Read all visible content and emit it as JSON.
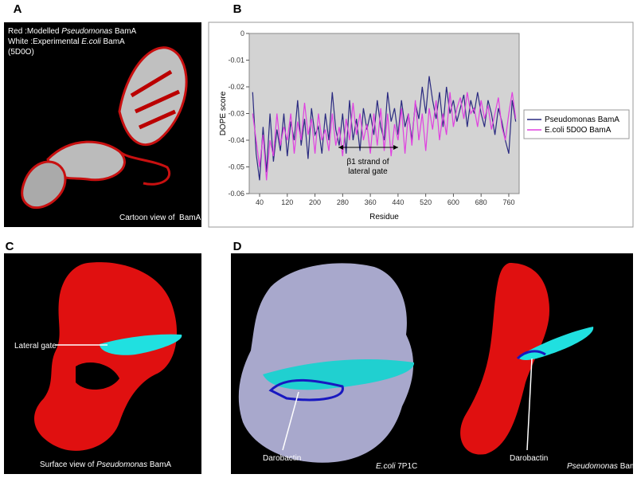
{
  "panels": {
    "a": {
      "letter": "A",
      "caption_line1": [
        "Red :Modelled ",
        "Pseudomonas",
        " BamA"
      ],
      "caption_line2": [
        "White :Experimental ",
        "E.coli",
        " BamA"
      ],
      "caption_line3": "(5D0O)",
      "footer": "Cartoon view of  BamA"
    },
    "b": {
      "letter": "B"
    },
    "c": {
      "letter": "C",
      "gate_label": "Lateral gate",
      "footer": [
        "Surface view of ",
        "Pseudomonas",
        " BamA"
      ]
    },
    "d": {
      "letter": "D",
      "left_label": "Darobactin",
      "left_footer": [
        "E.coli",
        " 7P1C"
      ],
      "right_label": "Darobactin",
      "right_footer": [
        "Pseudomonas",
        " BamA"
      ]
    }
  },
  "chart_data": {
    "type": "line",
    "x_label": "Residue",
    "y_label": "DOPE score",
    "annotation": [
      "β1 strand of",
      "lateral gate"
    ],
    "xlim": [
      10,
      790
    ],
    "ylim": [
      -0.06,
      0
    ],
    "xticks": [
      40,
      120,
      200,
      280,
      360,
      440,
      520,
      600,
      680,
      760
    ],
    "yticks": [
      0,
      -0.01,
      -0.02,
      -0.03,
      -0.04,
      -0.05,
      -0.06
    ],
    "background": "#d3d3d3",
    "x": [
      20,
      30,
      40,
      50,
      60,
      70,
      80,
      90,
      100,
      110,
      120,
      130,
      140,
      150,
      160,
      170,
      180,
      190,
      200,
      210,
      220,
      230,
      240,
      250,
      260,
      270,
      280,
      290,
      300,
      310,
      320,
      330,
      340,
      350,
      360,
      370,
      380,
      390,
      400,
      410,
      420,
      430,
      440,
      450,
      460,
      470,
      480,
      490,
      500,
      510,
      520,
      530,
      540,
      550,
      560,
      570,
      580,
      590,
      600,
      610,
      620,
      630,
      640,
      650,
      660,
      670,
      680,
      690,
      700,
      710,
      720,
      730,
      740,
      750,
      760,
      770,
      780
    ],
    "series": [
      {
        "name": "Pseudomonas BamA",
        "color": "#2a2a80",
        "values": [
          -0.022,
          -0.045,
          -0.055,
          -0.035,
          -0.052,
          -0.03,
          -0.048,
          -0.036,
          -0.044,
          -0.03,
          -0.046,
          -0.033,
          -0.04,
          -0.025,
          -0.042,
          -0.032,
          -0.047,
          -0.028,
          -0.038,
          -0.035,
          -0.045,
          -0.03,
          -0.04,
          -0.022,
          -0.036,
          -0.042,
          -0.03,
          -0.045,
          -0.025,
          -0.04,
          -0.032,
          -0.044,
          -0.028,
          -0.036,
          -0.03,
          -0.038,
          -0.025,
          -0.035,
          -0.04,
          -0.022,
          -0.033,
          -0.028,
          -0.038,
          -0.025,
          -0.035,
          -0.03,
          -0.04,
          -0.026,
          -0.032,
          -0.02,
          -0.03,
          -0.016,
          -0.025,
          -0.032,
          -0.022,
          -0.035,
          -0.02,
          -0.03,
          -0.025,
          -0.033,
          -0.028,
          -0.023,
          -0.035,
          -0.025,
          -0.03,
          -0.022,
          -0.03,
          -0.035,
          -0.025,
          -0.03,
          -0.038,
          -0.028,
          -0.033,
          -0.04,
          -0.045,
          -0.025,
          -0.033
        ]
      },
      {
        "name": "E.coli 5D0O BamA",
        "color": "#e040e0",
        "values": [
          -0.03,
          -0.04,
          -0.05,
          -0.038,
          -0.055,
          -0.04,
          -0.046,
          -0.03,
          -0.042,
          -0.035,
          -0.04,
          -0.03,
          -0.045,
          -0.033,
          -0.04,
          -0.026,
          -0.038,
          -0.032,
          -0.045,
          -0.03,
          -0.04,
          -0.036,
          -0.044,
          -0.03,
          -0.042,
          -0.035,
          -0.046,
          -0.032,
          -0.04,
          -0.026,
          -0.038,
          -0.03,
          -0.04,
          -0.034,
          -0.045,
          -0.03,
          -0.042,
          -0.028,
          -0.044,
          -0.03,
          -0.046,
          -0.034,
          -0.04,
          -0.028,
          -0.045,
          -0.03,
          -0.042,
          -0.025,
          -0.04,
          -0.03,
          -0.044,
          -0.028,
          -0.036,
          -0.025,
          -0.04,
          -0.03,
          -0.038,
          -0.022,
          -0.035,
          -0.028,
          -0.024,
          -0.032,
          -0.022,
          -0.03,
          -0.028,
          -0.035,
          -0.025,
          -0.032,
          -0.027,
          -0.036,
          -0.03,
          -0.024,
          -0.035,
          -0.04,
          -0.03,
          -0.022,
          -0.032
        ]
      }
    ],
    "legend": "right"
  }
}
